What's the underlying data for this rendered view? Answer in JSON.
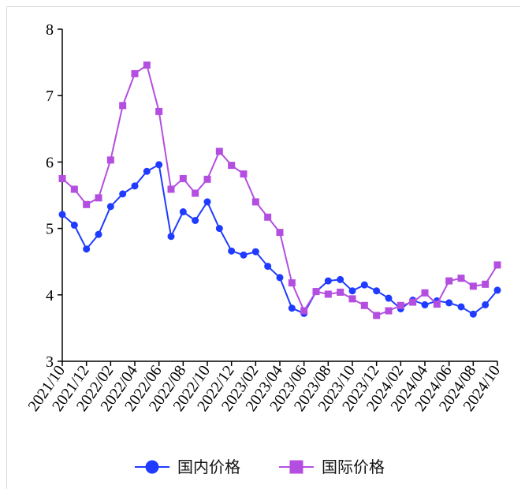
{
  "chart_data": {
    "type": "line",
    "title": "",
    "xlabel": "",
    "ylabel": "",
    "ylim": [
      3,
      8
    ],
    "yticks": [
      3,
      4,
      5,
      6,
      7,
      8
    ],
    "legend_position": "bottom",
    "grid": false,
    "x": [
      "2021/10",
      "2021/11",
      "2021/12",
      "2022/01",
      "2022/02",
      "2022/03",
      "2022/04",
      "2022/05",
      "2022/06",
      "2022/07",
      "2022/08",
      "2022/09",
      "2022/10",
      "2022/11",
      "2022/12",
      "2023/01",
      "2023/02",
      "2023/03",
      "2023/04",
      "2023/05",
      "2023/06",
      "2023/07",
      "2023/08",
      "2023/09",
      "2023/10",
      "2023/11",
      "2023/12",
      "2024/01",
      "2024/02",
      "2024/03",
      "2024/04",
      "2024/05",
      "2024/06",
      "2024/07",
      "2024/08",
      "2024/09",
      "2024/10"
    ],
    "x_tick_labels": [
      "2021/10",
      "2021/12",
      "2022/02",
      "2022/04",
      "2022/06",
      "2022/08",
      "2022/10",
      "2022/12",
      "2023/02",
      "2023/04",
      "2023/06",
      "2023/08",
      "2023/10",
      "2023/12",
      "2024/02",
      "2024/04",
      "2024/06",
      "2024/08",
      "2024/10"
    ],
    "series": [
      {
        "name": "国内价格",
        "color": "#1f3bff",
        "marker": "circle",
        "values": [
          5.21,
          5.05,
          4.69,
          4.91,
          5.33,
          5.52,
          5.64,
          5.86,
          5.96,
          4.88,
          5.25,
          5.12,
          5.4,
          5.0,
          4.66,
          4.6,
          4.65,
          4.43,
          4.26,
          3.8,
          3.72,
          4.05,
          4.21,
          4.23,
          4.06,
          4.15,
          4.06,
          3.95,
          3.79,
          3.92,
          3.85,
          3.91,
          3.88,
          3.82,
          3.71,
          3.85,
          4.07
        ]
      },
      {
        "name": "国际价格",
        "color": "#b44ee0",
        "marker": "square",
        "values": [
          5.75,
          5.59,
          5.36,
          5.46,
          6.03,
          6.85,
          7.33,
          7.46,
          6.76,
          5.59,
          5.75,
          5.53,
          5.74,
          6.16,
          5.95,
          5.82,
          5.4,
          5.17,
          4.94,
          4.18,
          3.76,
          4.05,
          4.01,
          4.04,
          3.94,
          3.84,
          3.69,
          3.76,
          3.84,
          3.89,
          4.03,
          3.86,
          4.21,
          4.25,
          4.13,
          4.16,
          4.45
        ]
      }
    ]
  }
}
